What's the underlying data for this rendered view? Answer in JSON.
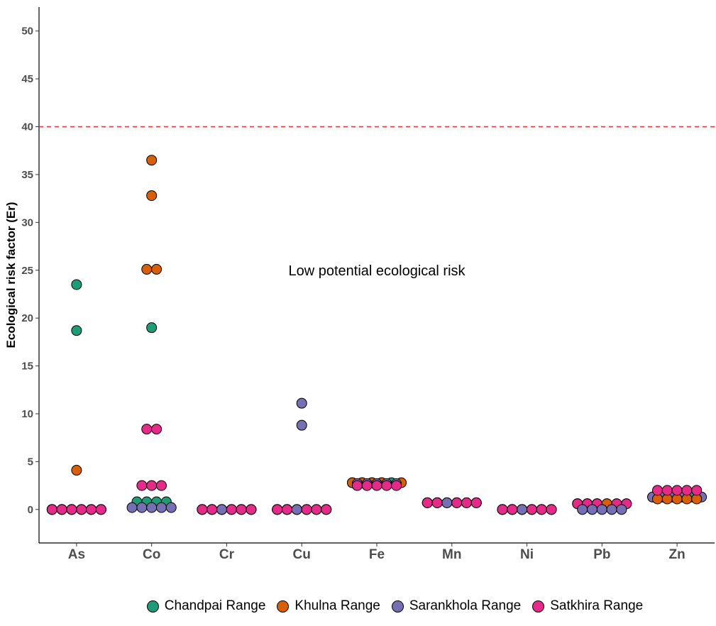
{
  "chart_data": {
    "type": "scatter",
    "ylabel": "Ecological risk factor (Er)",
    "xlabel": "",
    "categories": [
      "As",
      "Co",
      "Cr",
      "Cu",
      "Fe",
      "Mn",
      "Ni",
      "Pb",
      "Zn"
    ],
    "ylim": [
      -3.5,
      52.5
    ],
    "yticks": [
      0,
      5,
      10,
      15,
      20,
      25,
      30,
      35,
      40,
      45,
      50
    ],
    "grid": false,
    "legend_position": "bottom",
    "reference_line": {
      "y": 40,
      "style": "dashed",
      "color": "#e8393a"
    },
    "annotation": {
      "text": "Low potential ecological risk",
      "x": "Fe",
      "y": 25
    },
    "series": [
      {
        "name": "Chandpai Range",
        "color": "#1b9e77",
        "points": {
          "As": [
            23.5,
            18.7,
            0,
            0,
            0,
            0
          ],
          "Co": [
            19.0,
            0.8,
            0.8,
            0.8,
            0.8
          ],
          "Cr": [
            0,
            0,
            0,
            0,
            0
          ],
          "Cu": [
            0,
            0,
            0,
            0,
            0
          ],
          "Fe": [
            2.8,
            2.8,
            2.8,
            2.8,
            2.8
          ],
          "Mn": [
            0.7,
            0.7,
            0.7,
            0.7,
            0.7
          ],
          "Ni": [
            0,
            0,
            0,
            0,
            0
          ],
          "Pb": [
            0.6,
            0.6,
            0.6,
            0.6,
            0.6
          ],
          "Zn": [
            1.3,
            1.3,
            1.3,
            1.3,
            1.3
          ]
        }
      },
      {
        "name": "Khulna Range",
        "color": "#d95f02",
        "points": {
          "As": [
            4.1,
            0,
            0,
            0,
            0,
            0
          ],
          "Co": [
            36.5,
            32.8,
            25.1,
            25.1
          ],
          "Cr": [
            0,
            0,
            0,
            0,
            0
          ],
          "Cu": [
            0,
            0,
            0,
            0,
            0
          ],
          "Fe": [
            2.8,
            2.8,
            2.8,
            2.8,
            2.8
          ],
          "Mn": [
            0.7,
            0.7,
            0.7,
            0.7,
            0.7
          ],
          "Ni": [
            0,
            0,
            0,
            0,
            0
          ],
          "Pb": [
            0.6,
            0.6,
            0.6,
            0.6,
            0.6
          ],
          "Zn": [
            1.1,
            1.1,
            1.1,
            1.1,
            1.1
          ]
        }
      },
      {
        "name": "Sarankhola Range",
        "color": "#7570b3",
        "points": {
          "As": [
            0,
            0,
            0,
            0,
            0,
            0
          ],
          "Co": [
            0.2,
            0.2,
            0.2,
            0.2,
            0.2
          ],
          "Cr": [
            0,
            0,
            0,
            0,
            0
          ],
          "Cu": [
            11.1,
            8.8,
            0,
            0,
            0,
            0,
            0
          ],
          "Fe": [
            2.7,
            2.7,
            2.7,
            2.7,
            2.7
          ],
          "Mn": [
            0.7,
            0.7,
            0.7,
            0.7,
            0.7
          ],
          "Ni": [
            0,
            0,
            0,
            0,
            0
          ],
          "Pb": [
            0,
            0,
            0,
            0,
            0
          ],
          "Zn": [
            1.3,
            1.3,
            1.3,
            1.3,
            1.3
          ]
        }
      },
      {
        "name": "Satkhira Range",
        "color": "#e7298a",
        "points": {
          "As": [
            0,
            0,
            0,
            0,
            0,
            0
          ],
          "Co": [
            8.4,
            8.4,
            2.5,
            2.5,
            2.5
          ],
          "Cr": [
            0,
            0,
            0,
            0,
            0
          ],
          "Cu": [
            0,
            0,
            0,
            0,
            0
          ],
          "Fe": [
            2.5,
            2.5,
            2.5,
            2.5,
            2.5
          ],
          "Mn": [
            0.7,
            0.7,
            0.7,
            0.7,
            0.7
          ],
          "Ni": [
            0,
            0,
            0,
            0,
            0
          ],
          "Pb": [
            0.6,
            0.6,
            0.6,
            0.6,
            0.6
          ],
          "Zn": [
            2.0,
            2.0,
            2.0,
            2.0,
            2.0
          ]
        }
      }
    ]
  }
}
